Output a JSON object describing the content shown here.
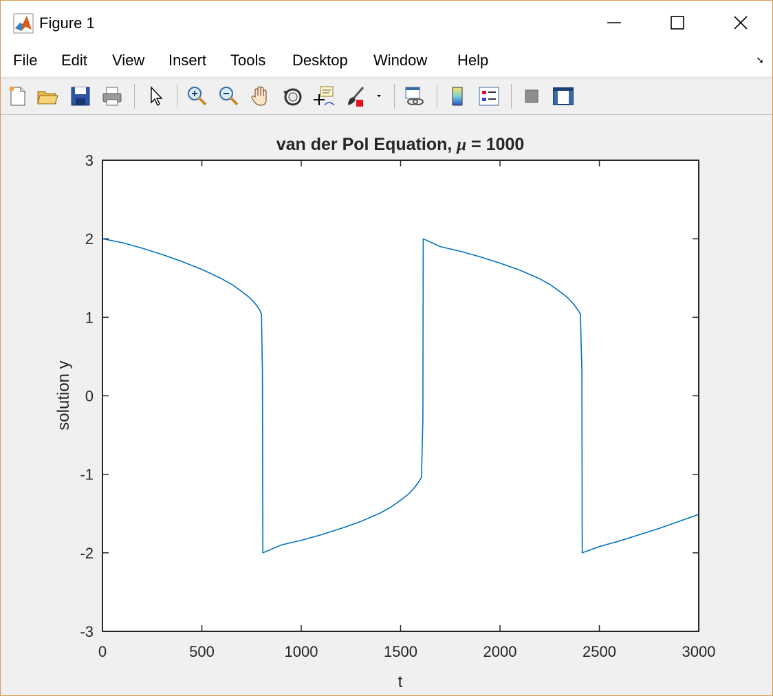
{
  "window": {
    "title": "Figure 1"
  },
  "menu": [
    "File",
    "Edit",
    "View",
    "Insert",
    "Tools",
    "Desktop",
    "Window",
    "Help"
  ],
  "toolbar": {
    "tools": [
      "new-figure-icon",
      "open-file-icon",
      "save-icon",
      "print-icon",
      "pointer-icon",
      "zoom-in-icon",
      "zoom-out-icon",
      "pan-icon",
      "rotate-3d-icon",
      "data-cursor-icon",
      "brush-icon",
      "link-plot-icon",
      "colorbar-icon",
      "legend-icon",
      "hide-plot-tools-icon",
      "show-plot-tools-icon"
    ]
  },
  "chart_data": {
    "type": "line",
    "title_prefix": "van der Pol Equation, ",
    "title_symbol": "μ",
    "title_suffix": " = 1000",
    "xlabel": "t",
    "ylabel": "solution y",
    "xlim": [
      0,
      3000
    ],
    "ylim": [
      -3,
      3
    ],
    "xticks": [
      "0",
      "500",
      "1000",
      "1500",
      "2000",
      "2500",
      "3000"
    ],
    "yticks": [
      "3",
      "2",
      "1",
      "0",
      "-1",
      "-2",
      "-3"
    ],
    "grid": false,
    "line_color": "#0072bd",
    "series": [
      {
        "x": [
          0,
          100,
          200,
          300,
          400,
          500,
          600,
          650,
          700,
          740,
          770,
          790,
          800,
          805,
          807,
          900,
          1000,
          1100,
          1200,
          1300,
          1400,
          1450,
          1500,
          1540,
          1570,
          1590,
          1605,
          1612,
          1614,
          1700,
          1800,
          1900,
          2000,
          2100,
          2200,
          2250,
          2300,
          2340,
          2370,
          2390,
          2405,
          2412,
          2414,
          2500,
          2600,
          2700,
          2800,
          2900,
          3000
        ],
        "y": [
          2.0,
          1.95,
          1.88,
          1.8,
          1.71,
          1.61,
          1.49,
          1.42,
          1.33,
          1.25,
          1.17,
          1.1,
          1.04,
          0.3,
          -2.0,
          -1.9,
          -1.84,
          -1.77,
          -1.69,
          -1.6,
          -1.49,
          -1.42,
          -1.33,
          -1.25,
          -1.17,
          -1.1,
          -1.04,
          -0.3,
          2.0,
          1.9,
          1.84,
          1.77,
          1.69,
          1.6,
          1.49,
          1.42,
          1.33,
          1.25,
          1.17,
          1.1,
          1.04,
          0.3,
          -2.0,
          -1.92,
          -1.85,
          -1.77,
          -1.69,
          -1.6,
          -1.51
        ]
      }
    ]
  }
}
